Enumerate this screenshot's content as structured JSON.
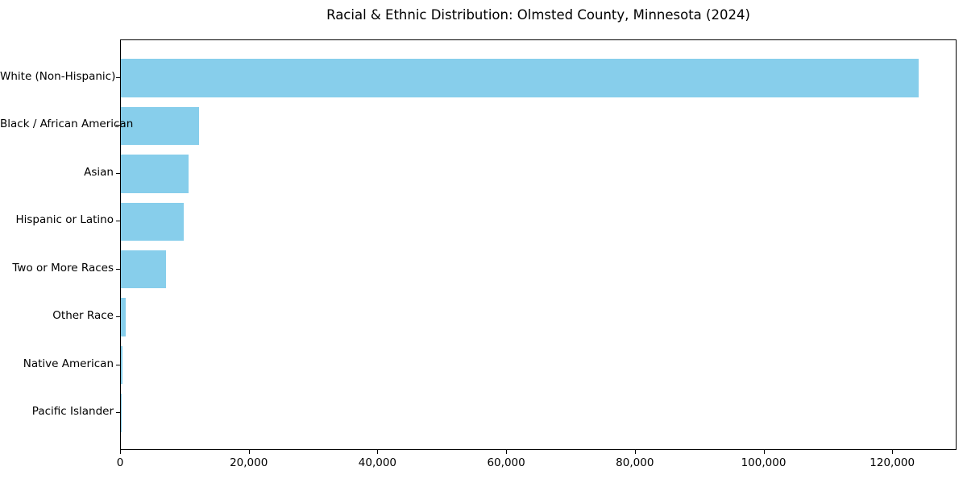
{
  "title": "Racial & Ethnic Distribution: Olmsted County, Minnesota (2024)",
  "colors": {
    "bar": "#87CEEB",
    "text": "#000000",
    "spine": "#000000",
    "background": "#FFFFFF"
  },
  "chart_data": {
    "type": "bar",
    "orientation": "horizontal",
    "title": "Racial & Ethnic Distribution: Olmsted County, Minnesota (2024)",
    "categories": [
      "White (Non-Hispanic)",
      "Black / African American",
      "Asian",
      "Hispanic or Latino",
      "Two or More Races",
      "Other Race",
      "Native American",
      "Pacific Islander"
    ],
    "values": [
      124000,
      12200,
      10500,
      9700,
      7000,
      800,
      300,
      100
    ],
    "xlabel": "",
    "ylabel": "",
    "xlim": [
      0,
      130000
    ],
    "xticks": [
      0,
      20000,
      40000,
      60000,
      80000,
      100000,
      120000
    ],
    "xtick_labels": [
      "0",
      "20,000",
      "40,000",
      "60,000",
      "80,000",
      "100,000",
      "120,000"
    ],
    "bar_color": "#87CEEB",
    "grid": false,
    "legend_position": "none"
  }
}
